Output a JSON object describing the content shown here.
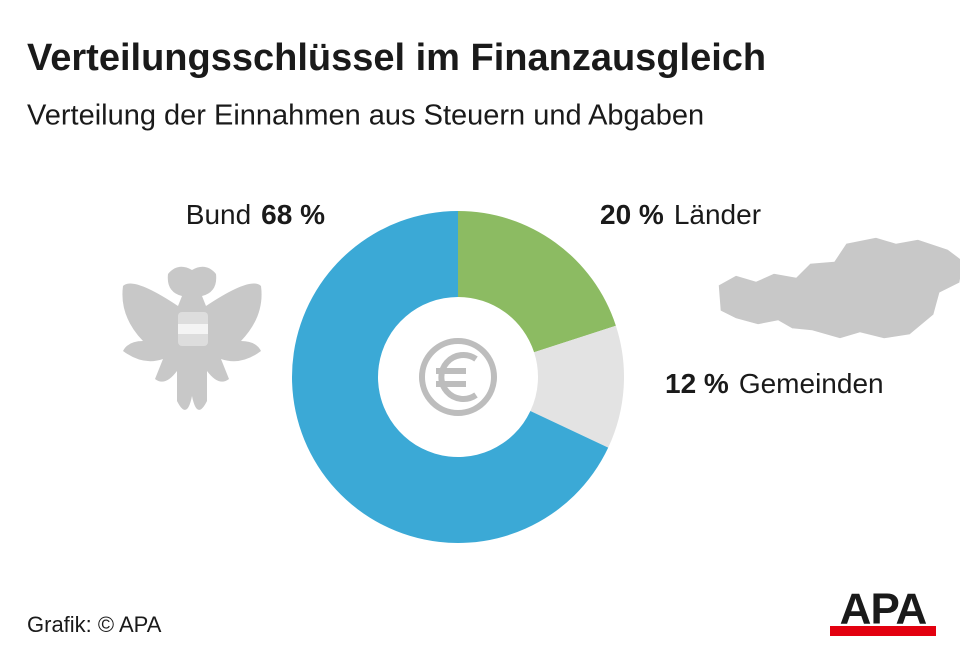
{
  "chart_data": {
    "type": "pie",
    "title": "Verteilungsschlüssel im Finanzausgleich",
    "subtitle": "Verteilung der Einnahmen aus Steuern und Abgaben",
    "categories": [
      "Länder",
      "Gemeinden",
      "Bund"
    ],
    "values": [
      20,
      12,
      68
    ],
    "value_labels": [
      "20 %",
      "12 %",
      "68 %"
    ],
    "colors": [
      "#8cbb62",
      "#e3e3e3",
      "#3ba9d6"
    ],
    "donut": true
  },
  "footer": {
    "source": "Grafik: © APA",
    "logo": "APA"
  }
}
